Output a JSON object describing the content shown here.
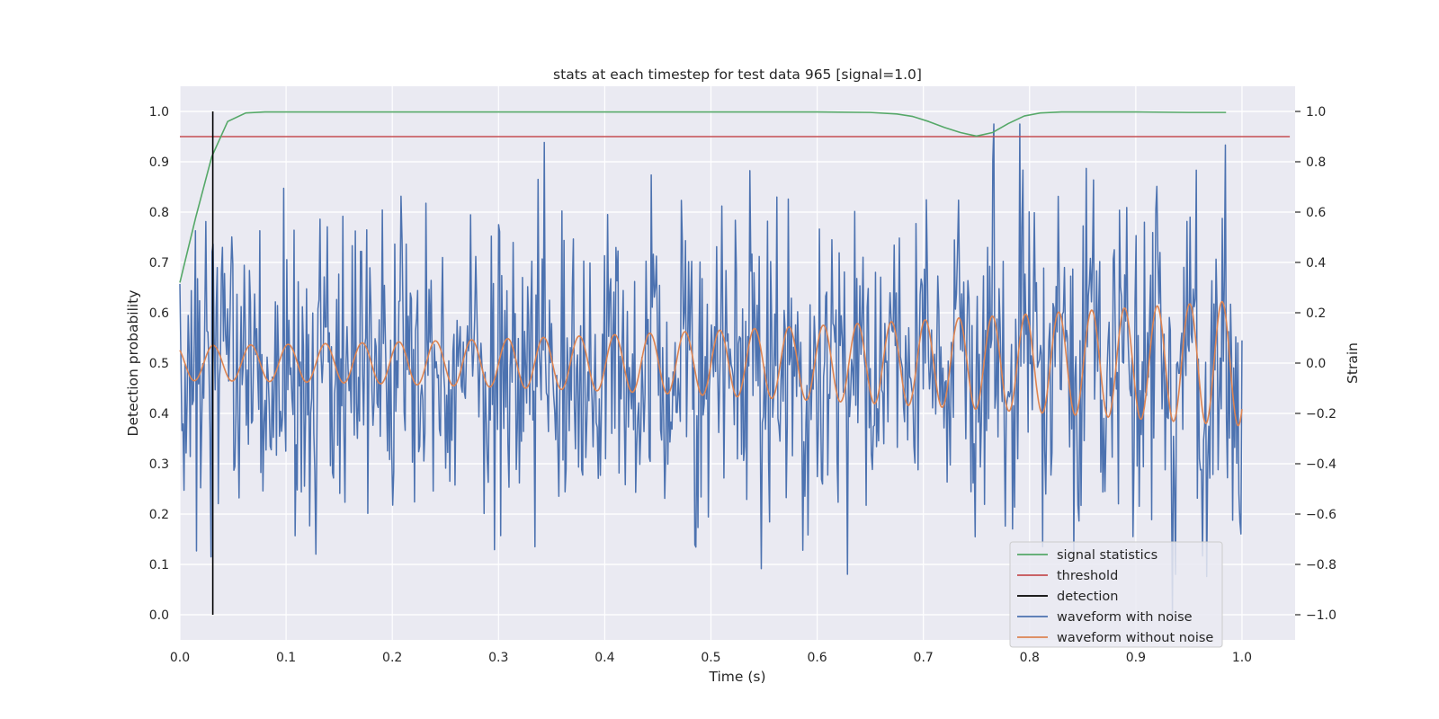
{
  "chart_data": {
    "type": "line",
    "title": "stats at each timestep for test data 965 [signal=1.0]",
    "xlabel": "Time (s)",
    "ylabel": "Detection probability",
    "ylabel_right": "Strain",
    "xlim": [
      0.0,
      1.05
    ],
    "ylim": [
      -0.05,
      1.05
    ],
    "ylim_right": [
      -1.1,
      1.1
    ],
    "xticks": [
      0.0,
      0.1,
      0.2,
      0.3,
      0.4,
      0.5,
      0.6,
      0.7,
      0.8,
      0.9,
      1.0
    ],
    "yticks": [
      0.0,
      0.1,
      0.2,
      0.3,
      0.4,
      0.5,
      0.6,
      0.7,
      0.8,
      0.9,
      1.0
    ],
    "yticks_right": [
      -1.0,
      -0.8,
      -0.6,
      -0.4,
      -0.2,
      0.0,
      0.2,
      0.4,
      0.6,
      0.8,
      1.0
    ],
    "grid": true,
    "legend_position": "bottom-right",
    "series": [
      {
        "name": "signal statistics",
        "axis": "left",
        "color": "#55a868",
        "x": [
          0.0,
          0.015,
          0.03,
          0.045,
          0.062,
          0.08,
          0.1,
          0.2,
          0.3,
          0.4,
          0.5,
          0.6,
          0.65,
          0.675,
          0.69,
          0.705,
          0.72,
          0.735,
          0.75,
          0.765,
          0.78,
          0.795,
          0.81,
          0.83,
          0.86,
          0.9,
          0.95,
          0.985
        ],
        "values": [
          0.66,
          0.79,
          0.91,
          0.98,
          0.997,
          0.999,
          0.999,
          0.999,
          0.999,
          0.999,
          0.999,
          0.999,
          0.998,
          0.995,
          0.99,
          0.98,
          0.968,
          0.958,
          0.951,
          0.958,
          0.976,
          0.991,
          0.997,
          0.999,
          0.999,
          0.999,
          0.998,
          0.998
        ]
      },
      {
        "name": "threshold",
        "axis": "left",
        "color": "#c44e52",
        "x": [
          0.0,
          1.045
        ],
        "values": [
          0.95,
          0.95
        ]
      },
      {
        "name": "detection",
        "axis": "left",
        "color": "#000000",
        "x": [
          0.031,
          0.031
        ],
        "values": [
          0.0,
          1.0
        ]
      },
      {
        "name": "waveform with noise",
        "axis": "right",
        "color": "#4c72b0",
        "generated": true,
        "samples": 1024,
        "x_range": [
          0.0,
          1.0
        ],
        "noise_std": 0.3,
        "seed": 965
      },
      {
        "name": "waveform without noise",
        "axis": "right",
        "color": "#dd8452",
        "generated": true,
        "samples": 1024,
        "x_range": [
          0.0,
          1.0
        ],
        "amp_start": 0.07,
        "amp_end": 0.25,
        "freq_start": 28,
        "freq_end": 33,
        "phase": 0.75
      }
    ]
  }
}
